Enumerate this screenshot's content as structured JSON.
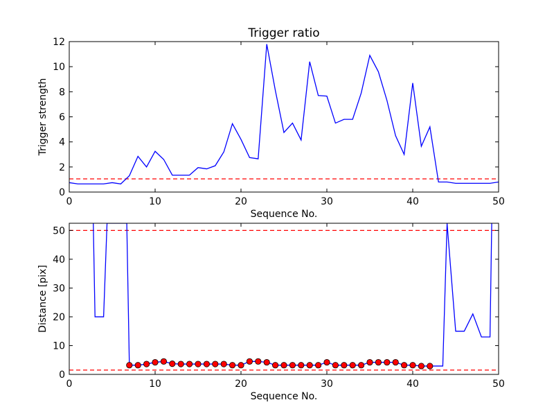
{
  "chart_data": [
    {
      "type": "line",
      "title": "Trigger ratio",
      "xlabel": "Sequence No.",
      "ylabel": "Trigger strength",
      "xlim": [
        0,
        50
      ],
      "ylim": [
        0,
        12
      ],
      "xticks": [
        "0",
        "10",
        "20",
        "30",
        "40",
        "50"
      ],
      "yticks": [
        "0",
        "2",
        "4",
        "6",
        "8",
        "10",
        "12"
      ],
      "grid": false,
      "line_color": "#0000ff",
      "threshold_color": "#ff0000",
      "series": [
        {
          "x": [
            0,
            1,
            2,
            3,
            4,
            5,
            6,
            7,
            8,
            9,
            10,
            11,
            12,
            13,
            14,
            15,
            16,
            17,
            18,
            19,
            20,
            21,
            22,
            23,
            24,
            25,
            26,
            27,
            28,
            29,
            30,
            31,
            32,
            33,
            34,
            35,
            36,
            37,
            38,
            39,
            40,
            41,
            42,
            43,
            44,
            45,
            46,
            47,
            48,
            49,
            50
          ],
          "values": [
            0.75,
            0.65,
            0.65,
            0.65,
            0.65,
            0.75,
            0.65,
            1.3,
            2.85,
            2.0,
            3.25,
            2.6,
            1.35,
            1.35,
            1.35,
            1.95,
            1.85,
            2.1,
            3.2,
            5.45,
            4.2,
            2.75,
            2.65,
            11.8,
            8.1,
            4.75,
            5.5,
            4.15,
            10.4,
            7.7,
            7.65,
            5.5,
            5.8,
            5.8,
            7.9,
            10.9,
            9.6,
            7.3,
            4.5,
            3.0,
            8.7,
            3.65,
            5.2,
            0.8,
            0.8,
            0.7,
            0.7,
            0.7,
            0.7,
            0.7,
            0.8
          ]
        }
      ],
      "thresholds": [
        1.05
      ]
    },
    {
      "type": "line",
      "title": "",
      "xlabel": "Sequence No.",
      "ylabel": "Distance [pix]",
      "xlim": [
        0,
        50
      ],
      "ylim": [
        0,
        52.5
      ],
      "xticks": [
        "0",
        "10",
        "20",
        "30",
        "40",
        "50"
      ],
      "yticks": [
        "0",
        "10",
        "20",
        "30",
        "40",
        "50"
      ],
      "grid": false,
      "line_color": "#0000ff",
      "marker_color": "#ff0000",
      "threshold_color": "#ff0000",
      "series": [
        {
          "x": [
            2.8,
            3,
            4,
            4.4,
            6.7,
            7,
            8,
            9,
            10,
            11,
            12,
            13,
            14,
            15,
            16,
            17,
            18,
            19,
            20,
            21,
            22,
            23,
            24,
            25,
            26,
            27,
            28,
            29,
            30,
            31,
            32,
            33,
            34,
            35,
            36,
            37,
            38,
            39,
            40,
            41,
            42,
            43,
            43.5,
            44,
            45,
            46,
            47,
            48,
            49,
            49.2
          ],
          "values": [
            52.5,
            20,
            20,
            52.5,
            52.5,
            3.2,
            3.2,
            3.6,
            4.2,
            4.5,
            3.7,
            3.6,
            3.6,
            3.6,
            3.6,
            3.6,
            3.6,
            3.2,
            3.2,
            4.5,
            4.5,
            4.2,
            3.2,
            3.2,
            3.2,
            3.2,
            3.2,
            3.2,
            4.2,
            3.2,
            3.2,
            3.2,
            3.2,
            4.2,
            4.2,
            4.2,
            4.2,
            3.2,
            3.2,
            2.9,
            2.9,
            2.9,
            2.9,
            52.5,
            15,
            15,
            21,
            13,
            13,
            52.5
          ]
        },
        {
          "x": [
            7,
            8,
            9,
            10,
            11,
            12,
            13,
            14,
            15,
            16,
            17,
            18,
            19,
            20,
            21,
            22,
            23,
            24,
            25,
            26,
            27,
            28,
            29,
            30,
            31,
            32,
            33,
            34,
            35,
            36,
            37,
            38,
            39,
            40,
            41,
            42
          ],
          "values": [
            3.2,
            3.2,
            3.6,
            4.2,
            4.5,
            3.7,
            3.6,
            3.6,
            3.6,
            3.6,
            3.6,
            3.6,
            3.2,
            3.2,
            4.5,
            4.5,
            4.2,
            3.2,
            3.2,
            3.2,
            3.2,
            3.2,
            3.2,
            4.2,
            3.2,
            3.2,
            3.2,
            3.2,
            4.2,
            4.2,
            4.2,
            4.2,
            3.2,
            3.2,
            2.9,
            2.9
          ]
        }
      ],
      "thresholds": [
        50,
        1.5
      ]
    }
  ]
}
